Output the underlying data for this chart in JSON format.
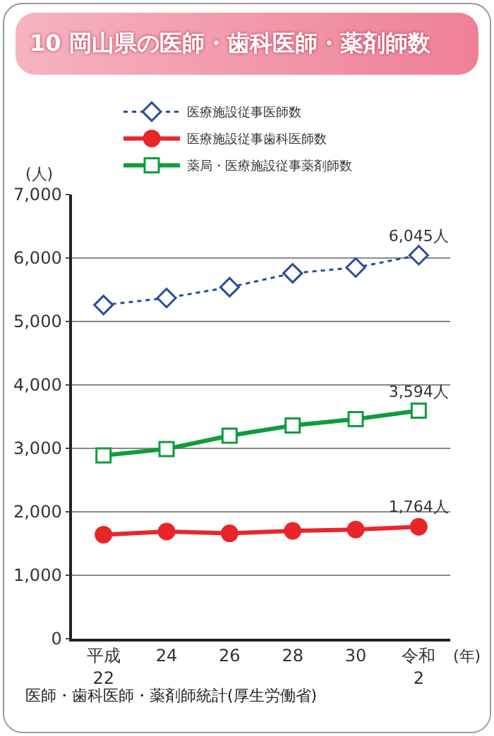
{
  "chart_data": {
    "type": "line",
    "title": "10 岡山県の医師・歯科医師・薬剤師数",
    "ylabel": "(人)",
    "xlabel": "(年)",
    "categories": [
      "平成\n22",
      "24",
      "26",
      "28",
      "30",
      "令和\n2"
    ],
    "series": [
      {
        "name": "医療施設従事医師数",
        "color": "#2b4c9b",
        "marker": "diamond",
        "line_style": "dotted",
        "values": [
          5260,
          5370,
          5540,
          5760,
          5850,
          6045
        ],
        "value_labels": [
          null,
          null,
          null,
          null,
          null,
          "6,045人"
        ]
      },
      {
        "name": "医療施設従事歯科医師数",
        "color": "#e8262a",
        "marker": "circle",
        "line_style": "solid",
        "values": [
          1640,
          1690,
          1660,
          1700,
          1720,
          1764
        ],
        "value_labels": [
          null,
          null,
          null,
          null,
          null,
          "1,764人"
        ]
      },
      {
        "name": "薬局・医療施設従事薬剤師数",
        "color": "#109c3c",
        "marker": "square",
        "line_style": "solid",
        "values": [
          2890,
          2990,
          3200,
          3360,
          3460,
          3594
        ],
        "value_labels": [
          null,
          null,
          null,
          null,
          null,
          "3,594人"
        ]
      }
    ],
    "ylim": [
      0,
      7000
    ],
    "yticks": [
      0,
      {
        "value": 1000,
        "label": "1,000"
      },
      {
        "value": 2000,
        "label": "2,000"
      },
      {
        "value": 3000,
        "label": "3,000"
      },
      {
        "value": 4000,
        "label": "4,000"
      },
      {
        "value": 5000,
        "label": "5,000"
      },
      {
        "value": 6000,
        "label": "6,000"
      },
      {
        "value": 7000,
        "label": "7,000"
      }
    ],
    "grid": "y",
    "legend": "top",
    "annotations": [
      "医師・歯科医師・薬剤師統計(厚生労働省)"
    ]
  }
}
